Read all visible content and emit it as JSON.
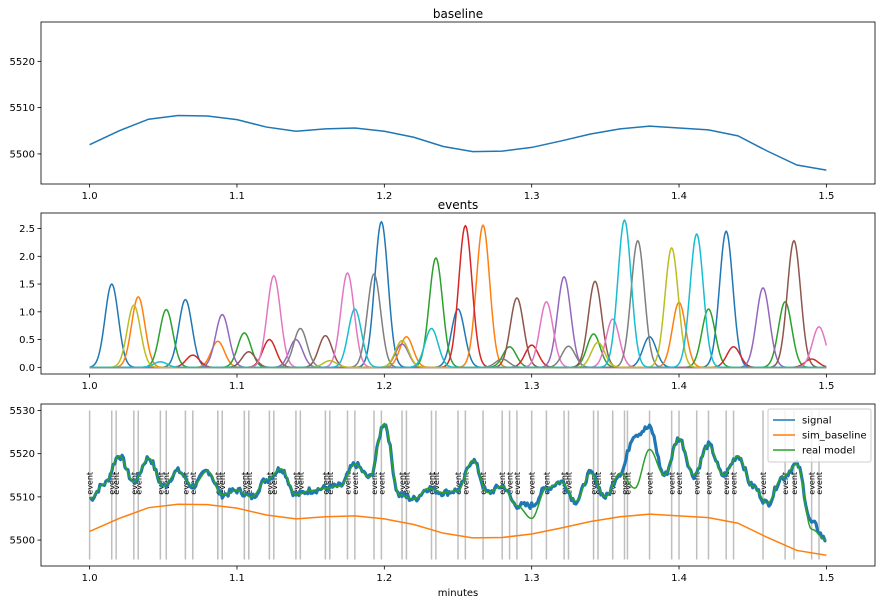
{
  "chart_data": [
    {
      "type": "line",
      "title": "baseline",
      "xlabel": "",
      "ylabel": "",
      "xlim": [
        0.967,
        1.533
      ],
      "ylim": [
        5493.5,
        5528.5
      ],
      "xticks": [
        "1.0",
        "1.1",
        "1.2",
        "1.3",
        "1.4",
        "1.5"
      ],
      "yticks": [
        "5500",
        "5510",
        "5520"
      ],
      "ytick_values": [
        5500,
        5510,
        5520
      ],
      "series": [
        {
          "color": "#1f77b4",
          "x": [
            1.0,
            1.02,
            1.04,
            1.06,
            1.08,
            1.1,
            1.12,
            1.14,
            1.16,
            1.18,
            1.2,
            1.22,
            1.24,
            1.26,
            1.28,
            1.3,
            1.32,
            1.34,
            1.36,
            1.38,
            1.4,
            1.42,
            1.44,
            1.46,
            1.48,
            1.5
          ],
          "y": [
            5502.0,
            5505.0,
            5507.5,
            5508.3,
            5508.2,
            5507.4,
            5505.8,
            5504.9,
            5505.4,
            5505.6,
            5504.9,
            5503.6,
            5501.6,
            5500.5,
            5500.6,
            5501.4,
            5502.8,
            5504.3,
            5505.4,
            5506.0,
            5505.6,
            5505.2,
            5503.9,
            5500.6,
            5497.6,
            5496.5
          ]
        }
      ]
    },
    {
      "type": "line",
      "title": "events",
      "xlabel": "",
      "ylabel": "",
      "xlim": [
        0.967,
        1.533
      ],
      "ylim": [
        -0.12,
        2.78
      ],
      "xticks": [
        "1.0",
        "1.1",
        "1.2",
        "1.3",
        "1.4",
        "1.5"
      ],
      "yticks": [
        "0.0",
        "0.5",
        "1.0",
        "1.5",
        "2.0",
        "2.5"
      ],
      "ytick_values": [
        0,
        0.5,
        1.0,
        1.5,
        2.0,
        2.5
      ],
      "peak_width": 0.0045,
      "series": [
        {
          "color": "#1f77b4",
          "peak_x": [
            1.015,
            1.065,
            1.198,
            1.25,
            1.38,
            1.432
          ],
          "peak_h": [
            1.5,
            1.22,
            2.62,
            1.05,
            0.55,
            2.45
          ]
        },
        {
          "color": "#ff7f0e",
          "peak_x": [
            1.033,
            1.087,
            1.215,
            1.267,
            1.4
          ],
          "peak_h": [
            1.27,
            0.47,
            0.55,
            2.56,
            1.17
          ]
        },
        {
          "color": "#2ca02c",
          "peak_x": [
            1.052,
            1.105,
            1.235,
            1.285,
            1.342,
            1.42,
            1.472
          ],
          "peak_h": [
            1.04,
            0.62,
            1.97,
            0.37,
            0.6,
            1.05,
            1.18
          ]
        },
        {
          "color": "#d62728",
          "peak_x": [
            1.07,
            1.122,
            1.255,
            1.3,
            1.437,
            1.49
          ],
          "peak_h": [
            0.22,
            0.5,
            2.55,
            0.4,
            0.37,
            0.15
          ]
        },
        {
          "color": "#9467bd",
          "peak_x": [
            1.09,
            1.14,
            1.212,
            1.322,
            1.457
          ],
          "peak_h": [
            0.95,
            0.5,
            0.42,
            1.63,
            1.43
          ]
        },
        {
          "color": "#8c564b",
          "peak_x": [
            1.108,
            1.16,
            1.29,
            1.343,
            1.478
          ],
          "peak_h": [
            0.28,
            0.57,
            1.25,
            1.55,
            2.28
          ]
        },
        {
          "color": "#e377c2",
          "peak_x": [
            1.125,
            1.175,
            1.31,
            1.355,
            1.495
          ],
          "peak_h": [
            1.65,
            1.7,
            1.18,
            0.87,
            0.73
          ]
        },
        {
          "color": "#7f7f7f",
          "peak_x": [
            1.143,
            1.193,
            1.28,
            1.325,
            1.372
          ],
          "peak_h": [
            0.7,
            1.68,
            0.15,
            0.38,
            2.28
          ]
        },
        {
          "color": "#bcbd22",
          "peak_x": [
            1.03,
            1.163,
            1.212,
            1.345,
            1.395
          ],
          "peak_h": [
            1.12,
            0.12,
            0.48,
            0.45,
            2.15
          ]
        },
        {
          "color": "#17becf",
          "peak_x": [
            1.048,
            1.18,
            1.232,
            1.363,
            1.412
          ],
          "peak_h": [
            0.1,
            1.05,
            0.7,
            2.65,
            2.4
          ]
        }
      ]
    },
    {
      "type": "line",
      "title": "",
      "xlabel": "minutes",
      "ylabel": "",
      "xlim": [
        0.967,
        1.533
      ],
      "ylim": [
        5494,
        5531.5
      ],
      "xticks": [
        "1.0",
        "1.1",
        "1.2",
        "1.3",
        "1.4",
        "1.5"
      ],
      "yticks": [
        "5500",
        "5510",
        "5520",
        "5530"
      ],
      "ytick_values": [
        5500,
        5510,
        5520,
        5530
      ],
      "legend_position": "top-right",
      "event_label": "event",
      "event_x": [
        1.0,
        1.015,
        1.018,
        1.03,
        1.033,
        1.048,
        1.052,
        1.065,
        1.07,
        1.087,
        1.09,
        1.105,
        1.108,
        1.122,
        1.125,
        1.14,
        1.143,
        1.16,
        1.163,
        1.175,
        1.18,
        1.193,
        1.198,
        1.212,
        1.215,
        1.232,
        1.235,
        1.25,
        1.255,
        1.267,
        1.28,
        1.285,
        1.29,
        1.3,
        1.31,
        1.322,
        1.325,
        1.342,
        1.345,
        1.355,
        1.363,
        1.365,
        1.38,
        1.395,
        1.4,
        1.412,
        1.42,
        1.432,
        1.437,
        1.457,
        1.472,
        1.478,
        1.49,
        1.495
      ],
      "series": [
        {
          "name": "signal",
          "color": "#1f77b4",
          "x": [
            1.0,
            1.01,
            1.02,
            1.03,
            1.04,
            1.05,
            1.06,
            1.07,
            1.08,
            1.09,
            1.1,
            1.11,
            1.12,
            1.13,
            1.14,
            1.15,
            1.16,
            1.17,
            1.18,
            1.19,
            1.2,
            1.21,
            1.22,
            1.23,
            1.24,
            1.25,
            1.26,
            1.27,
            1.28,
            1.29,
            1.3,
            1.31,
            1.32,
            1.33,
            1.34,
            1.35,
            1.36,
            1.37,
            1.38,
            1.39,
            1.4,
            1.41,
            1.42,
            1.43,
            1.44,
            1.45,
            1.46,
            1.47,
            1.48,
            1.49,
            1.5
          ],
          "y": [
            5509.5,
            5513.0,
            5519.5,
            5513.5,
            5519.0,
            5512.5,
            5516.0,
            5512.5,
            5516.0,
            5510.5,
            5511.5,
            5510.0,
            5514.0,
            5516.5,
            5510.5,
            5511.5,
            5512.0,
            5512.5,
            5517.5,
            5514.5,
            5527.0,
            5510.5,
            5509.5,
            5512.0,
            5511.0,
            5511.5,
            5518.5,
            5511.0,
            5512.5,
            5508.0,
            5508.0,
            5512.0,
            5513.5,
            5509.0,
            5515.5,
            5510.0,
            5515.5,
            5524.5,
            5526.0,
            5515.0,
            5523.5,
            5515.0,
            5522.0,
            5515.0,
            5519.5,
            5512.5,
            5508.5,
            5514.5,
            5517.5,
            5504.0,
            5500.0
          ]
        },
        {
          "name": "sim_baseline",
          "color": "#ff7f0e",
          "x": [
            1.0,
            1.02,
            1.04,
            1.06,
            1.08,
            1.1,
            1.12,
            1.14,
            1.16,
            1.18,
            1.2,
            1.22,
            1.24,
            1.26,
            1.28,
            1.3,
            1.32,
            1.34,
            1.36,
            1.38,
            1.4,
            1.42,
            1.44,
            1.46,
            1.48,
            1.5
          ],
          "y": [
            5502.0,
            5505.0,
            5507.5,
            5508.3,
            5508.2,
            5507.4,
            5505.8,
            5504.9,
            5505.4,
            5505.6,
            5504.9,
            5503.6,
            5501.6,
            5500.5,
            5500.6,
            5501.4,
            5502.8,
            5504.3,
            5505.4,
            5506.0,
            5505.6,
            5505.2,
            5503.9,
            5500.6,
            5497.6,
            5496.5
          ]
        },
        {
          "name": "real model",
          "color": "#2ca02c",
          "x": [
            1.0,
            1.01,
            1.02,
            1.03,
            1.04,
            1.05,
            1.06,
            1.07,
            1.08,
            1.09,
            1.1,
            1.11,
            1.12,
            1.13,
            1.14,
            1.15,
            1.16,
            1.17,
            1.18,
            1.19,
            1.2,
            1.21,
            1.22,
            1.23,
            1.24,
            1.25,
            1.26,
            1.27,
            1.28,
            1.29,
            1.3,
            1.31,
            1.32,
            1.33,
            1.34,
            1.35,
            1.36,
            1.37,
            1.38,
            1.39,
            1.4,
            1.41,
            1.42,
            1.43,
            1.44,
            1.45,
            1.46,
            1.47,
            1.48,
            1.49,
            1.5
          ],
          "y": [
            5509.5,
            5513.0,
            5519.5,
            5513.5,
            5519.0,
            5512.5,
            5516.0,
            5512.5,
            5516.0,
            5510.5,
            5511.5,
            5510.0,
            5514.0,
            5516.5,
            5510.5,
            5511.5,
            5512.0,
            5512.5,
            5517.5,
            5514.5,
            5527.0,
            5510.5,
            5509.5,
            5512.0,
            5511.0,
            5511.5,
            5518.5,
            5511.0,
            5512.5,
            5508.0,
            5505.0,
            5512.0,
            5513.5,
            5509.0,
            5515.5,
            5510.0,
            5515.5,
            5512.0,
            5521.0,
            5515.0,
            5523.5,
            5515.0,
            5522.0,
            5515.0,
            5519.5,
            5512.5,
            5508.5,
            5514.5,
            5517.5,
            5502.5,
            5500.0
          ]
        }
      ]
    }
  ]
}
